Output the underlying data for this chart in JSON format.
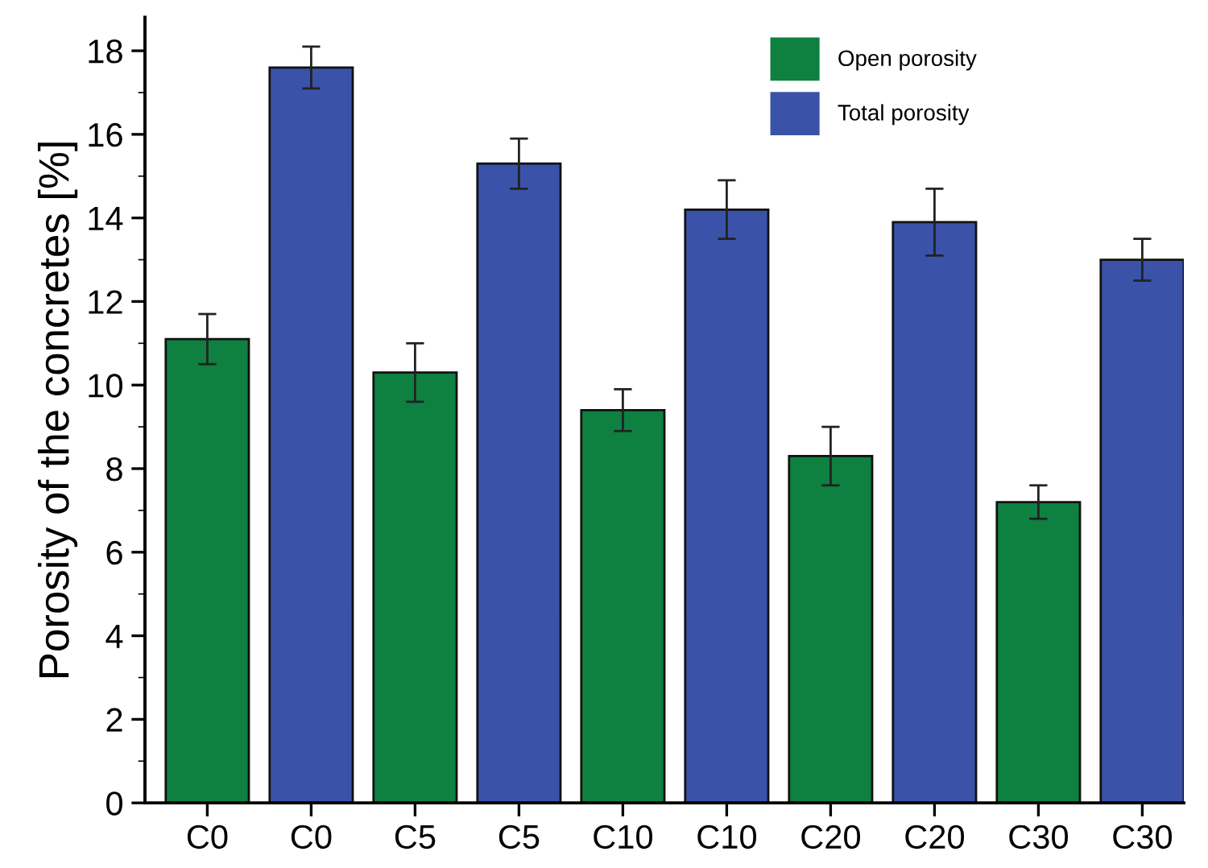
{
  "chart_data": {
    "type": "bar",
    "ylabel": "Porosity of the concretes [%]",
    "categories": [
      "C0",
      "C0",
      "C5",
      "C5",
      "C10",
      "C10",
      "C20",
      "C20",
      "C30",
      "C30"
    ],
    "series": [
      {
        "name": "Open porosity",
        "color": "#0e8040",
        "values": [
          11.1,
          null,
          10.3,
          null,
          9.4,
          null,
          8.3,
          null,
          7.2,
          null
        ],
        "errors": [
          0.6,
          null,
          0.7,
          null,
          0.5,
          null,
          0.7,
          null,
          0.4,
          null
        ]
      },
      {
        "name": "Total porosity",
        "color": "#3a52a8",
        "values": [
          null,
          17.6,
          null,
          15.3,
          null,
          14.2,
          null,
          13.9,
          null,
          13.0
        ],
        "errors": [
          null,
          0.5,
          null,
          0.6,
          null,
          0.7,
          null,
          0.8,
          null,
          0.5
        ]
      }
    ],
    "ylim": [
      0,
      18.8
    ],
    "yticks": [
      0,
      2,
      4,
      6,
      8,
      10,
      12,
      14,
      16,
      18
    ],
    "grid": false,
    "legend": "top right"
  }
}
